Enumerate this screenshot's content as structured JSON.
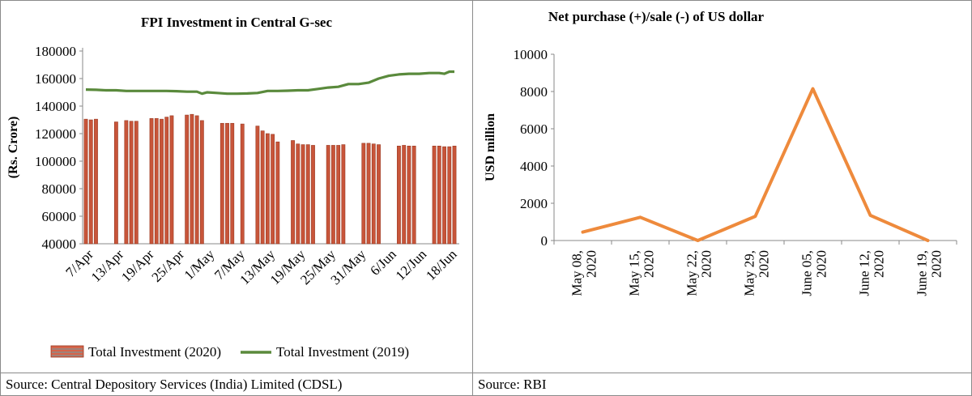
{
  "chart_data": [
    {
      "type": "bar+line",
      "title": "FPI Investment in Central G-sec",
      "ylabel": "(Rs. Crore)",
      "xlabel": "",
      "ylim": [
        40000,
        180000
      ],
      "yticks": [
        40000,
        60000,
        80000,
        100000,
        120000,
        140000,
        160000,
        180000
      ],
      "ytick_labels": [
        "40000",
        "60000",
        "80000",
        "100000",
        "120000",
        "140000",
        "160000",
        "180000"
      ],
      "x_tick_labels": [
        "7/Apr",
        "13/Apr",
        "19/Apr",
        "25/Apr",
        "1/May",
        "7/May",
        "13/May",
        "19/May",
        "25/May",
        "31/May",
        "6/Jun",
        "12/Jun",
        "18/Jun"
      ],
      "x_start_day": 0,
      "x_end_day": 73,
      "series": [
        {
          "name": "Total Investment (2020)",
          "kind": "bar",
          "color": "#c8553a",
          "points": [
            {
              "day": 0,
              "value": 130500
            },
            {
              "day": 1,
              "value": 130000
            },
            {
              "day": 2,
              "value": 130500
            },
            {
              "day": 6,
              "value": 128500
            },
            {
              "day": 8,
              "value": 129500
            },
            {
              "day": 9,
              "value": 129000
            },
            {
              "day": 10,
              "value": 129000
            },
            {
              "day": 13,
              "value": 131000
            },
            {
              "day": 14,
              "value": 131000
            },
            {
              "day": 15,
              "value": 130500
            },
            {
              "day": 16,
              "value": 132000
            },
            {
              "day": 17,
              "value": 133000
            },
            {
              "day": 20,
              "value": 133500
            },
            {
              "day": 21,
              "value": 134000
            },
            {
              "day": 22,
              "value": 133000
            },
            {
              "day": 23,
              "value": 129500
            },
            {
              "day": 27,
              "value": 127500
            },
            {
              "day": 28,
              "value": 127500
            },
            {
              "day": 29,
              "value": 127500
            },
            {
              "day": 31,
              "value": 127000
            },
            {
              "day": 34,
              "value": 125500
            },
            {
              "day": 35,
              "value": 122000
            },
            {
              "day": 36,
              "value": 120000
            },
            {
              "day": 37,
              "value": 119500
            },
            {
              "day": 38,
              "value": 114000
            },
            {
              "day": 41,
              "value": 115000
            },
            {
              "day": 42,
              "value": 112500
            },
            {
              "day": 43,
              "value": 112000
            },
            {
              "day": 44,
              "value": 112000
            },
            {
              "day": 45,
              "value": 111500
            },
            {
              "day": 48,
              "value": 111500
            },
            {
              "day": 49,
              "value": 111500
            },
            {
              "day": 50,
              "value": 111500
            },
            {
              "day": 51,
              "value": 112000
            },
            {
              "day": 55,
              "value": 113000
            },
            {
              "day": 56,
              "value": 113000
            },
            {
              "day": 57,
              "value": 112500
            },
            {
              "day": 58,
              "value": 112000
            },
            {
              "day": 62,
              "value": 111000
            },
            {
              "day": 63,
              "value": 111500
            },
            {
              "day": 64,
              "value": 111000
            },
            {
              "day": 65,
              "value": 111000
            },
            {
              "day": 69,
              "value": 111000
            },
            {
              "day": 70,
              "value": 111000
            },
            {
              "day": 71,
              "value": 110500
            },
            {
              "day": 72,
              "value": 110500
            },
            {
              "day": 73,
              "value": 111000
            }
          ]
        },
        {
          "name": "Total Investment (2019)",
          "kind": "line",
          "color": "#5a8a3c",
          "points": [
            {
              "day": 0,
              "value": 152000
            },
            {
              "day": 2,
              "value": 151800
            },
            {
              "day": 4,
              "value": 151500
            },
            {
              "day": 6,
              "value": 151500
            },
            {
              "day": 8,
              "value": 151000
            },
            {
              "day": 10,
              "value": 151000
            },
            {
              "day": 12,
              "value": 151000
            },
            {
              "day": 14,
              "value": 151000
            },
            {
              "day": 16,
              "value": 151000
            },
            {
              "day": 18,
              "value": 150800
            },
            {
              "day": 20,
              "value": 150500
            },
            {
              "day": 22,
              "value": 150500
            },
            {
              "day": 23,
              "value": 149000
            },
            {
              "day": 24,
              "value": 150000
            },
            {
              "day": 26,
              "value": 149500
            },
            {
              "day": 28,
              "value": 149000
            },
            {
              "day": 30,
              "value": 149000
            },
            {
              "day": 32,
              "value": 149200
            },
            {
              "day": 34,
              "value": 149500
            },
            {
              "day": 36,
              "value": 151000
            },
            {
              "day": 38,
              "value": 151000
            },
            {
              "day": 40,
              "value": 151200
            },
            {
              "day": 42,
              "value": 151500
            },
            {
              "day": 44,
              "value": 151500
            },
            {
              "day": 46,
              "value": 152500
            },
            {
              "day": 48,
              "value": 153500
            },
            {
              "day": 50,
              "value": 154000
            },
            {
              "day": 52,
              "value": 156000
            },
            {
              "day": 54,
              "value": 156000
            },
            {
              "day": 56,
              "value": 157000
            },
            {
              "day": 58,
              "value": 160000
            },
            {
              "day": 60,
              "value": 162000
            },
            {
              "day": 62,
              "value": 163000
            },
            {
              "day": 64,
              "value": 163500
            },
            {
              "day": 66,
              "value": 163500
            },
            {
              "day": 68,
              "value": 164000
            },
            {
              "day": 70,
              "value": 164000
            },
            {
              "day": 71,
              "value": 163500
            },
            {
              "day": 72,
              "value": 165000
            },
            {
              "day": 73,
              "value": 165000
            }
          ]
        }
      ],
      "legend": [
        "Total Investment (2020)",
        "Total Investment (2019)"
      ],
      "legend_position": "bottom",
      "grid": false,
      "source": "Source: Central Depository Services (India) Limited (CDSL)"
    },
    {
      "type": "line",
      "title": "Net purchase (+)/sale (-) of US dollar",
      "ylabel": "USD million",
      "xlabel": "",
      "ylim": [
        0,
        10000
      ],
      "yticks": [
        0,
        2000,
        4000,
        6000,
        8000,
        10000
      ],
      "ytick_labels": [
        "0",
        "2000",
        "4000",
        "6000",
        "8000",
        "10000"
      ],
      "categories": [
        [
          "May 08,",
          "2020"
        ],
        [
          "May 15,",
          "2020"
        ],
        [
          "May 22,",
          "2020"
        ],
        [
          "May 29,",
          "2020"
        ],
        [
          "June 05,",
          "2020"
        ],
        [
          "June 12,",
          "2020"
        ],
        [
          "June 19,",
          "2020"
        ]
      ],
      "series": [
        {
          "name": "Net purchase",
          "color": "#ee8a3c",
          "values": [
            450,
            1250,
            0,
            1300,
            8150,
            1350,
            0
          ]
        }
      ],
      "grid": false,
      "source": "Source: RBI"
    }
  ]
}
